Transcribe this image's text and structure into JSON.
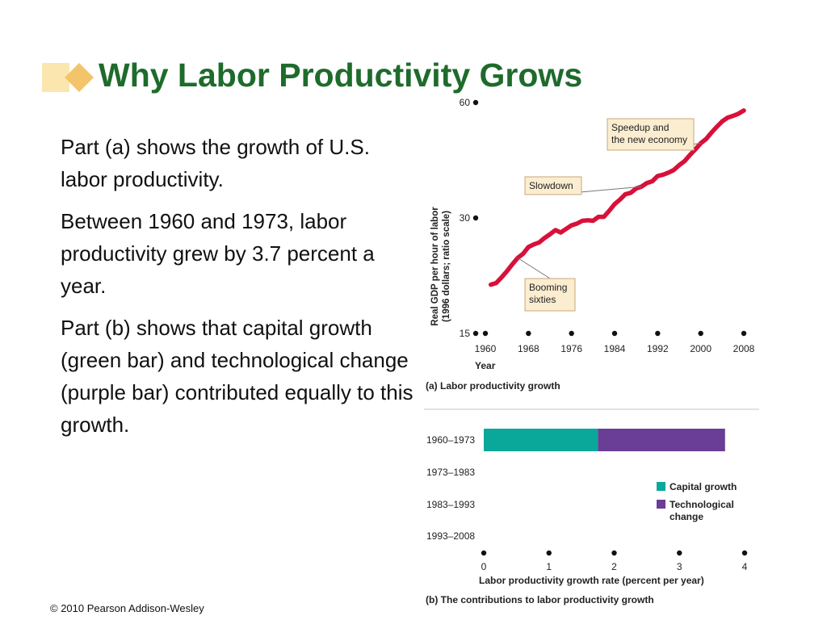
{
  "slide": {
    "title": "Why Labor Productivity Grows",
    "paragraphs": [
      "Part (a) shows the growth of U.S. labor productivity.",
      "Between 1960 and 1973, labor productivity grew by 3.7 percent a year.",
      "Part (b) shows that capital growth (green bar) and technological change (purple bar) contributed equally to this growth."
    ],
    "footer": "© 2010 Pearson Addison-Wesley"
  },
  "colors": {
    "title": "#1e6b2c",
    "line": "#d8103a",
    "capital": "#0aa89a",
    "technology": "#6a3d96",
    "callout_bg": "#fbedd0",
    "callout_border": "#c8a878"
  },
  "chart_data": [
    {
      "type": "line",
      "scale": "log",
      "ylabel": "Real GDP per hour of labor (1996 dollars; ratio scale)",
      "xlabel": "Year",
      "caption": "(a) Labor productivity growth",
      "ylim": [
        15,
        60
      ],
      "yticks": [
        15,
        30,
        60
      ],
      "xlim": [
        1960,
        2008
      ],
      "xticks": [
        1960,
        1968,
        1976,
        1984,
        1992,
        2000,
        2008
      ],
      "series": [
        {
          "x": [
            1961,
            1962,
            1963,
            1964,
            1965,
            1966,
            1967,
            1968,
            1969,
            1970,
            1971,
            1972,
            1973,
            1974,
            1975,
            1976,
            1977,
            1978,
            1979,
            1980,
            1981,
            1982,
            1983,
            1984,
            1985,
            1986,
            1987,
            1988,
            1989,
            1990,
            1991,
            1992,
            1993,
            1994,
            1995,
            1996,
            1997,
            1998,
            1999,
            2000,
            2001,
            2002,
            2003,
            2004,
            2005,
            2006,
            2007,
            2008
          ],
          "values": [
            20.1,
            20.3,
            21.0,
            21.8,
            22.7,
            23.6,
            24.2,
            25.2,
            25.6,
            25.9,
            26.6,
            27.2,
            27.9,
            27.5,
            28.1,
            28.7,
            29.0,
            29.5,
            29.6,
            29.5,
            30.2,
            30.2,
            31.3,
            32.6,
            33.5,
            34.6,
            34.9,
            35.8,
            36.2,
            37.0,
            37.4,
            38.6,
            38.9,
            39.4,
            40.0,
            41.2,
            42.2,
            43.8,
            45.3,
            47.0,
            48.2,
            50.1,
            51.9,
            53.6,
            54.8,
            55.4,
            56.1,
            57.2
          ]
        }
      ],
      "annotations": [
        {
          "lines": [
            "Booming",
            "sixties"
          ]
        },
        {
          "lines": [
            "Slowdown"
          ]
        },
        {
          "lines": [
            "Speedup and",
            "the new economy"
          ]
        }
      ]
    },
    {
      "type": "bar",
      "stacked": true,
      "orientation": "horizontal",
      "categories": [
        "1960–1973",
        "1973–1983",
        "1983–1993",
        "1993–2008"
      ],
      "series": [
        {
          "name": "Capital growth",
          "values": [
            1.75,
            null,
            null,
            null
          ]
        },
        {
          "name": "Technological change",
          "values": [
            1.95,
            null,
            null,
            null
          ]
        }
      ],
      "xlim": [
        0,
        4
      ],
      "xticks": [
        0,
        1,
        2,
        3,
        4
      ],
      "xlabel": "Labor productivity growth rate (percent per year)",
      "caption": "(b) The contributions to labor productivity growth",
      "legend": {
        "entries": [
          "Capital growth",
          "Technological change"
        ]
      }
    }
  ]
}
